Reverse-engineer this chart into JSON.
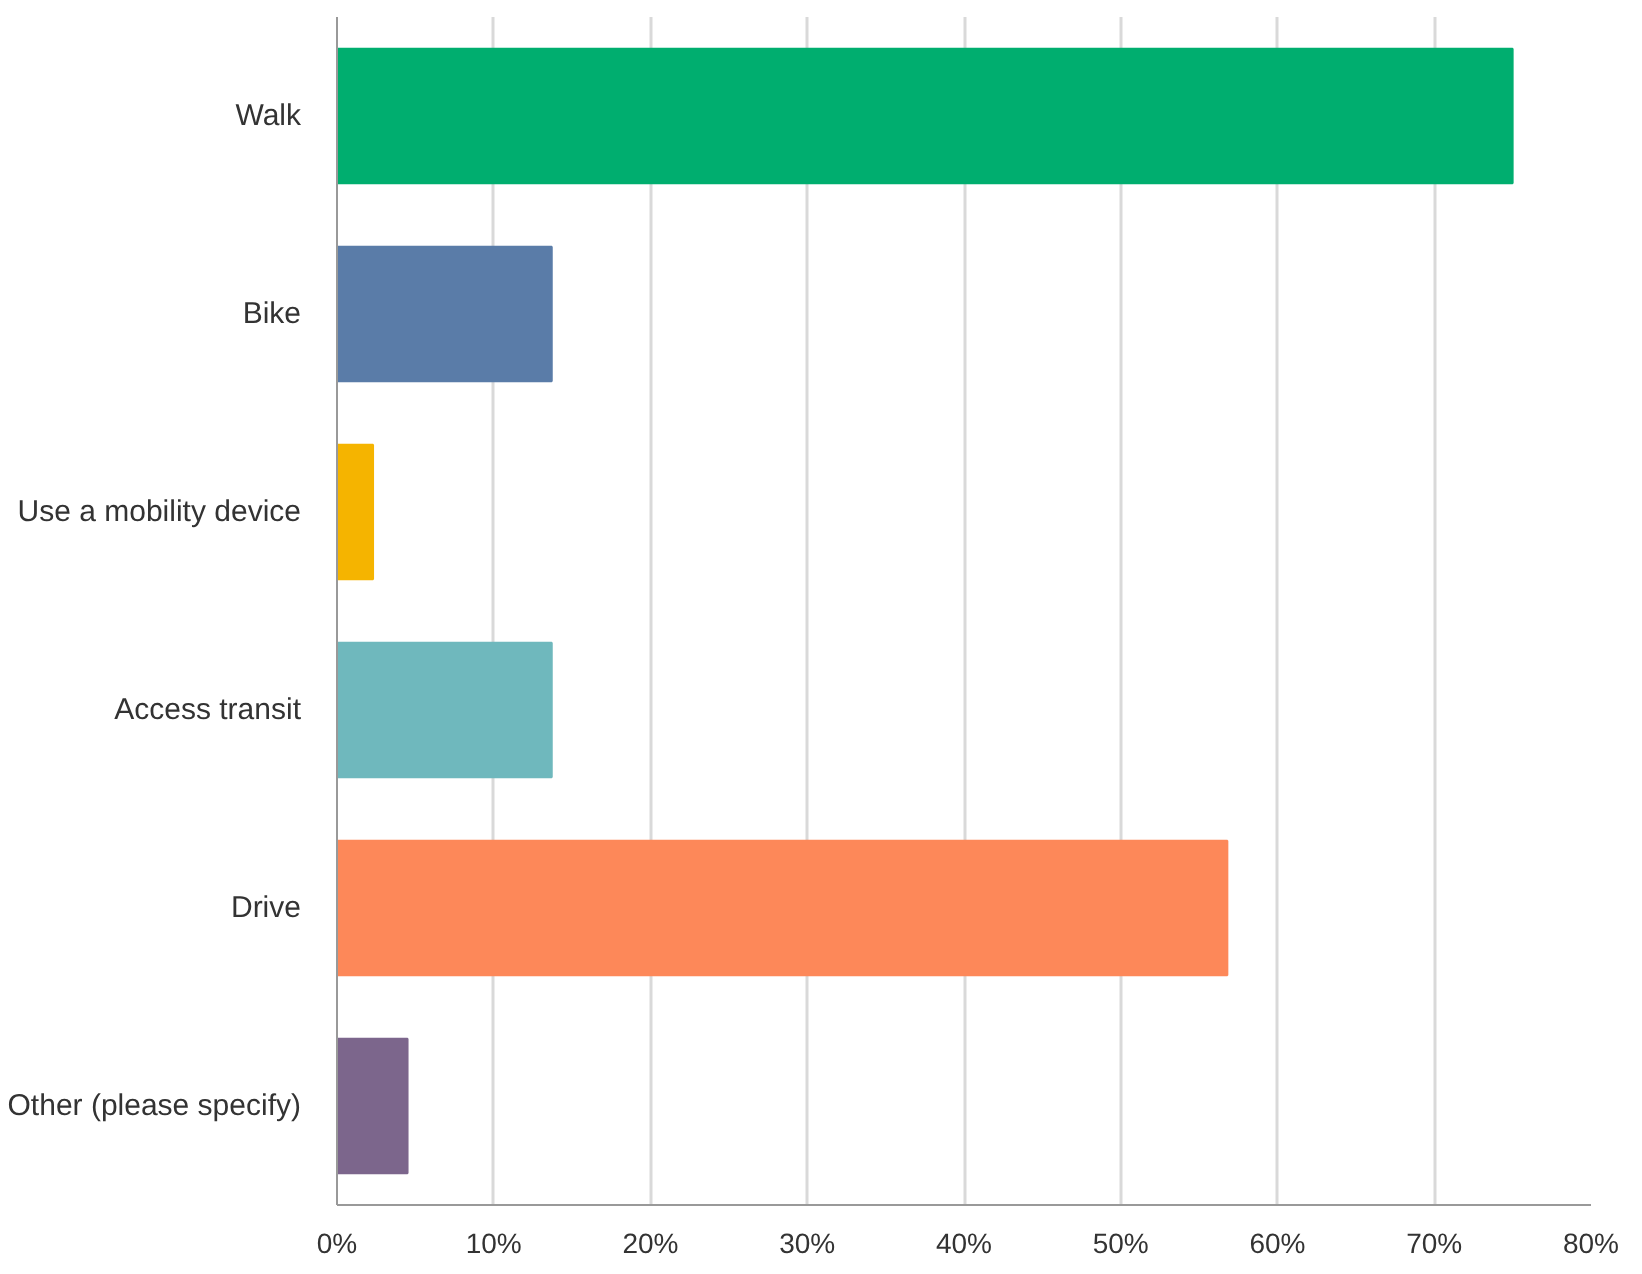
{
  "chart_data": {
    "type": "bar",
    "orientation": "horizontal",
    "categories": [
      "Walk",
      "Bike",
      "Use a mobility device",
      "Access transit",
      "Drive",
      "Other (please specify)"
    ],
    "values": [
      75,
      13.7,
      2.3,
      13.7,
      56.8,
      4.5
    ],
    "colors": [
      "#00ae6f",
      "#5a7ca8",
      "#f5b400",
      "#6fb8bd",
      "#fd8859",
      "#7c668c"
    ],
    "xlim": [
      0,
      80
    ],
    "xticks": [
      {
        "value": 0,
        "label": "0%"
      },
      {
        "value": 10,
        "label": "10%"
      },
      {
        "value": 20,
        "label": "20%"
      },
      {
        "value": 30,
        "label": "30%"
      },
      {
        "value": 40,
        "label": "40%"
      },
      {
        "value": 50,
        "label": "50%"
      },
      {
        "value": 60,
        "label": "60%"
      },
      {
        "value": 70,
        "label": "70%"
      },
      {
        "value": 80,
        "label": "80%"
      }
    ],
    "grid": "x"
  }
}
